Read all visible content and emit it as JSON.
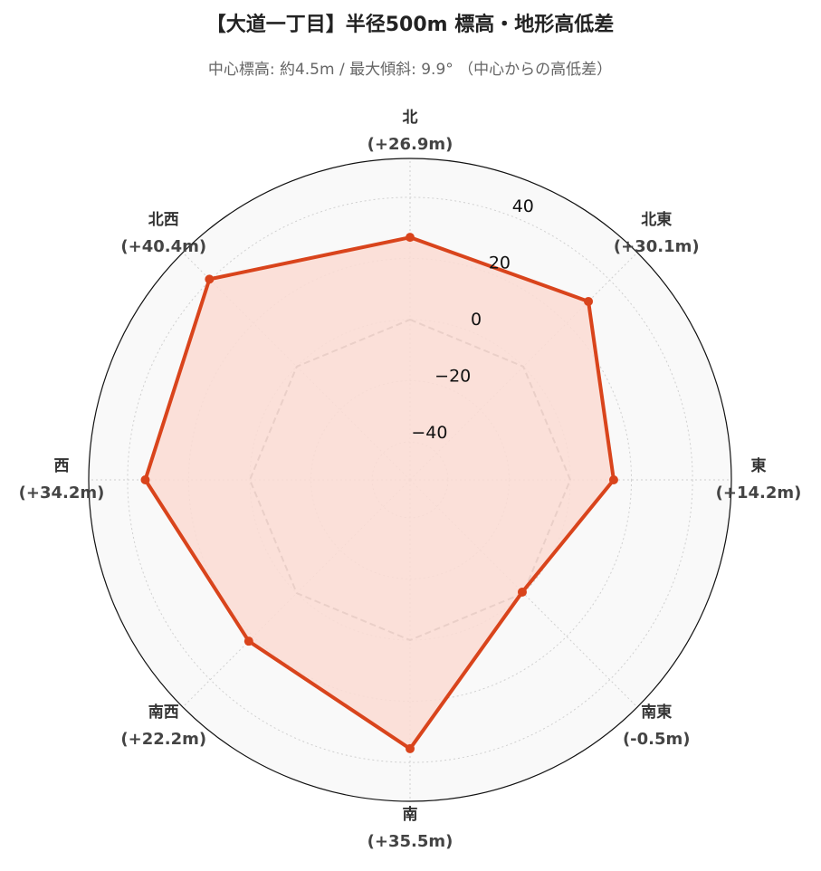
{
  "chart_data": {
    "type": "radar",
    "title": "【大道一丁目】半径500m 標高・地形高低差",
    "subtitle": "中心標高: 約4.5m / 最大傾斜: 9.9° （中心からの高低差）",
    "categories": [
      "北",
      "北東",
      "東",
      "南東",
      "南",
      "南西",
      "西",
      "北西"
    ],
    "series": [
      {
        "color": "#d9441c",
        "fill": "#fbdcd4",
        "values": [
          26.9,
          30.1,
          14.2,
          -0.5,
          35.5,
          22.2,
          34.2,
          40.4
        ],
        "value_labels": [
          "(+26.9m)",
          "(+30.1m)",
          "(+14.2m)",
          "(-0.5m)",
          "(+35.5m)",
          "(+22.2m)",
          "(+34.2m)",
          "(+40.4m)"
        ]
      }
    ],
    "reference": 0,
    "reference_color": "#888888",
    "ylim": [
      -52.4,
      52.7
    ],
    "yticks": [
      {
        "value": -40,
        "label": "−40"
      },
      {
        "value": -20,
        "label": "−20"
      },
      0,
      20,
      40
    ],
    "grid": true
  }
}
